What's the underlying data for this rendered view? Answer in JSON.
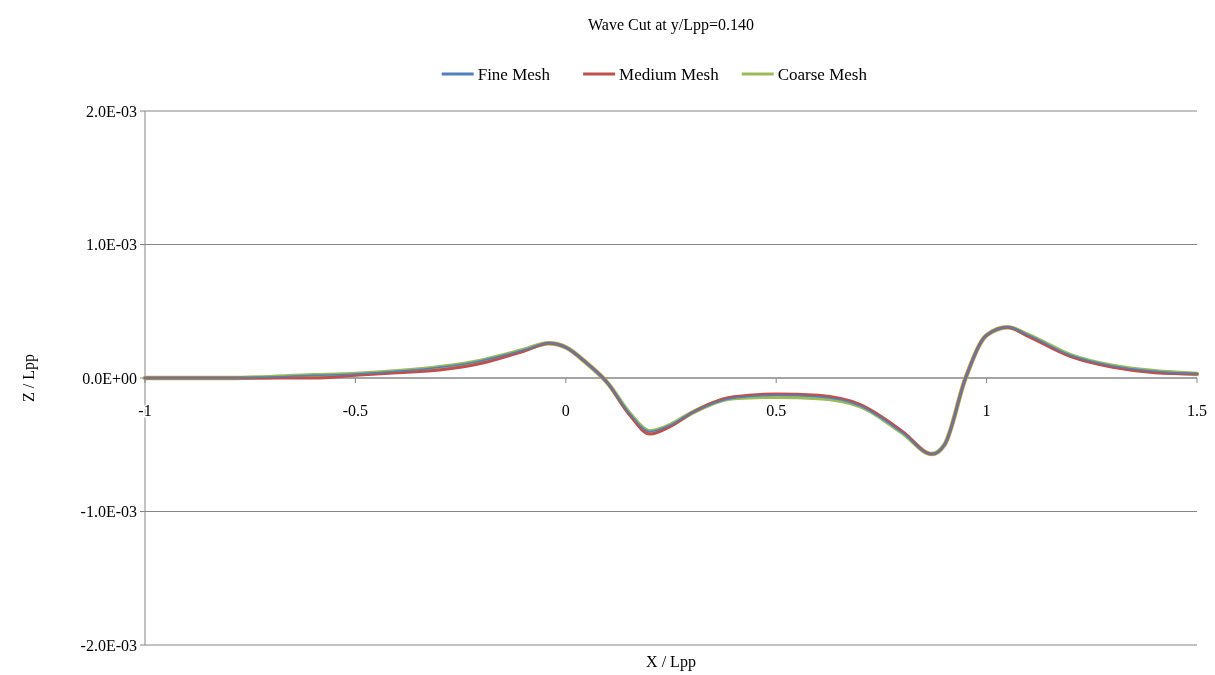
{
  "chart_data": {
    "type": "line",
    "title": "Wave Cut at y/Lpp=0.140",
    "xlabel": "X / Lpp",
    "ylabel": "Z / Lpp",
    "x": [
      -1,
      -0.8,
      -0.6,
      -0.5,
      -0.4,
      -0.3,
      -0.2,
      -0.1,
      -0.04,
      0,
      0.05,
      0.1,
      0.15,
      0.2,
      0.25,
      0.3,
      0.4,
      0.5,
      0.6,
      0.7,
      0.8,
      0.87,
      0.9,
      0.95,
      1,
      1.05,
      1.1,
      1.2,
      1.3,
      1.4,
      1.5
    ],
    "series": [
      {
        "name": "Fine Mesh",
        "color": "#4f81bd",
        "values": [
          0,
          0,
          2e-05,
          3e-05,
          5e-05,
          8e-05,
          0.00013,
          0.00021,
          0.00026,
          0.00023,
          0.00011,
          -4e-05,
          -0.00026,
          -0.0004,
          -0.00035,
          -0.00026,
          -0.00015,
          -0.00013,
          -0.00014,
          -0.00021,
          -0.00041,
          -0.00057,
          -0.0005,
          0,
          0.00032,
          0.00038,
          0.00032,
          0.00017,
          9e-05,
          5e-05,
          3e-05
        ]
      },
      {
        "name": "Medium Mesh",
        "color": "#c0504d",
        "values": [
          0,
          0,
          0,
          2e-05,
          4e-05,
          6e-05,
          0.00011,
          0.0002,
          0.00026,
          0.00023,
          0.00011,
          -4e-05,
          -0.00027,
          -0.00042,
          -0.00036,
          -0.00026,
          -0.00014,
          -0.00012,
          -0.00013,
          -0.0002,
          -0.0004,
          -0.00057,
          -0.0005,
          0,
          0.00032,
          0.00038,
          0.00031,
          0.00016,
          8e-05,
          4e-05,
          3e-05
        ]
      },
      {
        "name": "Coarse Mesh",
        "color": "#9bbb59",
        "values": [
          0,
          0,
          2e-05,
          3e-05,
          5e-05,
          8e-05,
          0.00013,
          0.00021,
          0.00026,
          0.00023,
          0.00011,
          -4e-05,
          -0.00026,
          -0.0004,
          -0.00035,
          -0.00026,
          -0.00015,
          -0.00014,
          -0.00015,
          -0.00021,
          -0.00041,
          -0.00057,
          -0.0005,
          0,
          0.00032,
          0.00038,
          0.00032,
          0.00017,
          9e-05,
          5e-05,
          3e-05
        ]
      }
    ],
    "xlim": [
      -1,
      1.5
    ],
    "xticks": [
      -1,
      -0.5,
      0,
      0.5,
      1,
      1.5
    ],
    "ylim": [
      -0.002,
      0.002
    ],
    "yticks": [
      {
        "value": -0.002,
        "label": "-2.0E-03"
      },
      {
        "value": -0.001,
        "label": "-1.0E-03"
      },
      {
        "value": 0,
        "label": "0.0E+00"
      },
      {
        "value": 0.001,
        "label": "1.0E-03"
      },
      {
        "value": 0.002,
        "label": "2.0E-03"
      }
    ],
    "grid": "y",
    "legend": "top",
    "marker": "none",
    "line_style": "solid"
  }
}
